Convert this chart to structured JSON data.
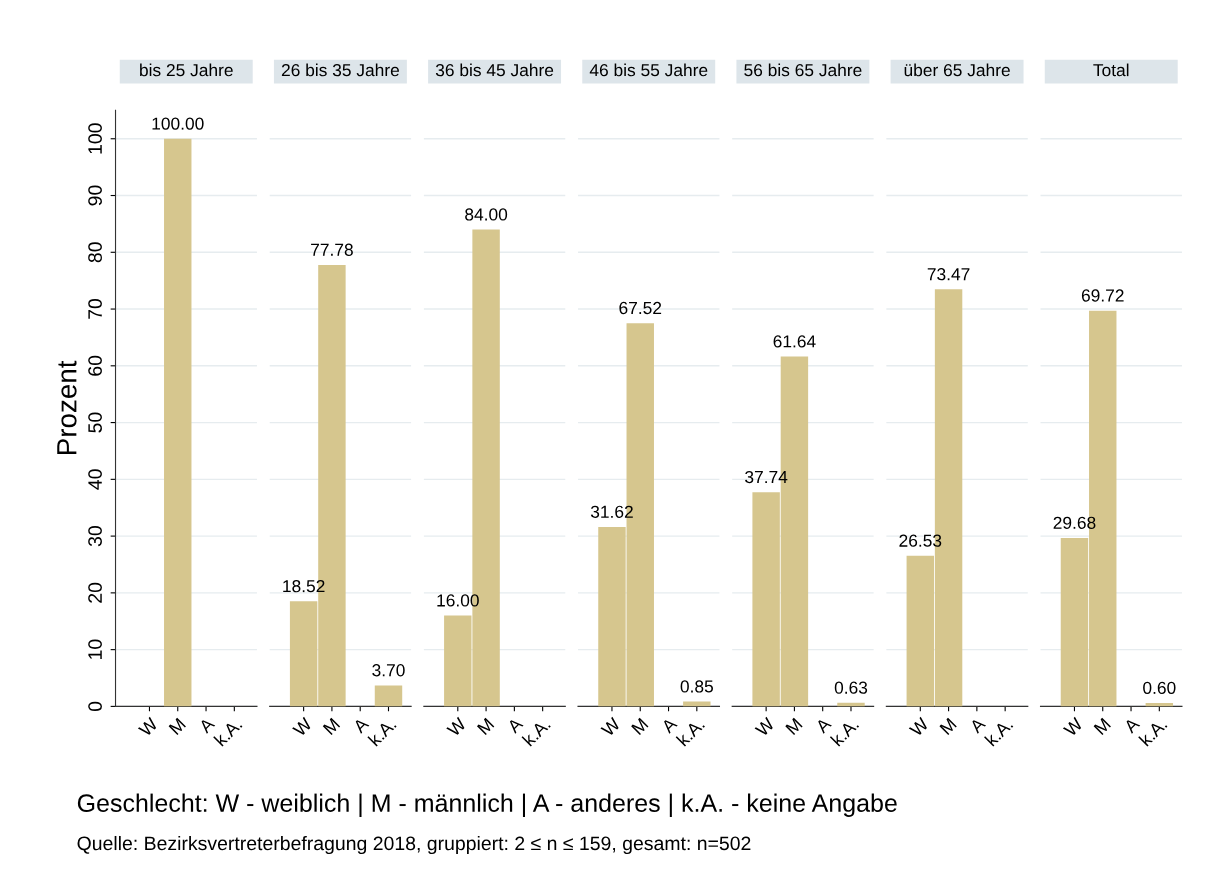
{
  "chart_data": [
    {
      "type": "bar",
      "title": "bis 25 Jahre",
      "ylabel": "Prozent",
      "categories": [
        "W",
        "M",
        "A",
        "k.A."
      ],
      "values": [
        0,
        100,
        0,
        0
      ],
      "value_labels": [
        null,
        "100.00",
        null,
        null
      ],
      "color": "#d6c68e",
      "ylim": [
        0,
        105
      ],
      "yticks": [
        0,
        10,
        20,
        30,
        40,
        50,
        60,
        70,
        80,
        90,
        100
      ],
      "grid": "y",
      "annotations": [
        "Geschlecht: W - weiblich | M - männlich | A - anderes | k.A. - keine Angabe",
        "Quelle: Bezirksvertreterbefragung 2018, gruppiert: 2 ≤ n ≤ 159, gesamt: n=502"
      ]
    },
    {
      "type": "bar",
      "title": "26 bis 35 Jahre",
      "categories": [
        "W",
        "M",
        "A",
        "k.A."
      ],
      "values": [
        18.52,
        77.78,
        0,
        3.7
      ],
      "value_labels": [
        "18.52",
        "77.78",
        null,
        "3.70"
      ],
      "color": "#d6c68e",
      "grid": "y",
      "tick_labels": "x"
    },
    {
      "type": "bar",
      "title": "36 bis 45 Jahre",
      "categories": [
        "W",
        "M",
        "A",
        "k.A."
      ],
      "values": [
        16.0,
        84.0,
        0,
        0
      ],
      "value_labels": [
        "16.00",
        "84.00",
        null,
        null
      ],
      "color": "#d6c68e",
      "grid": "y",
      "tick_labels": "x"
    },
    {
      "type": "bar",
      "title": "46 bis 55 Jahre",
      "categories": [
        "W",
        "M",
        "A",
        "k.A."
      ],
      "values": [
        31.62,
        67.52,
        0,
        0.85
      ],
      "value_labels": [
        "31.62",
        "67.52",
        null,
        "0.85"
      ],
      "color": "#d6c68e",
      "grid": "y",
      "tick_labels": "x"
    },
    {
      "type": "bar",
      "title": "56 bis 65 Jahre",
      "categories": [
        "W",
        "M",
        "A",
        "k.A."
      ],
      "values": [
        37.74,
        61.64,
        0,
        0.63
      ],
      "value_labels": [
        "37.74",
        "61.64",
        null,
        "0.63"
      ],
      "color": "#d6c68e",
      "grid": "y",
      "tick_labels": "x"
    },
    {
      "type": "bar",
      "title": "über 65 Jahre",
      "categories": [
        "W",
        "M",
        "A",
        "k.A."
      ],
      "values": [
        26.53,
        73.47,
        0,
        0
      ],
      "value_labels": [
        "26.53",
        "73.47",
        null,
        null
      ],
      "color": "#d6c68e",
      "grid": "y",
      "tick_labels": "x"
    },
    {
      "type": "bar",
      "title": "Total",
      "categories": [
        "W",
        "M",
        "A",
        "k.A."
      ],
      "values": [
        29.68,
        69.72,
        0,
        0.6
      ],
      "value_labels": [
        "29.68",
        "69.72",
        null,
        "0.60"
      ],
      "color": "#d6c68e",
      "grid": "y",
      "tick_labels": "x"
    }
  ]
}
